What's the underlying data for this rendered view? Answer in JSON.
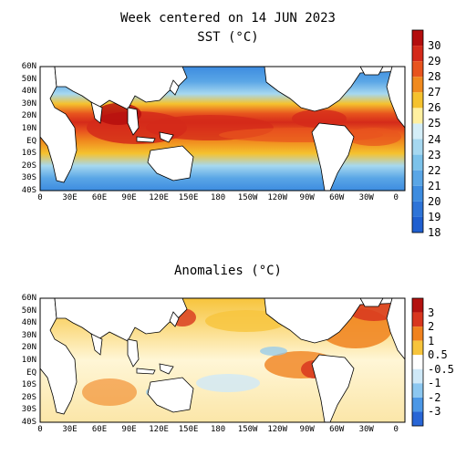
{
  "header": {
    "title": "Week centered on 14 JUN 2023",
    "sst_subtitle": "SST (°C)",
    "anom_subtitle": "Anomalies (°C)"
  },
  "lat_labels": [
    "60N",
    "50N",
    "40N",
    "30N",
    "20N",
    "10N",
    "EQ",
    "10S",
    "20S",
    "30S",
    "40S"
  ],
  "lon_labels": [
    "0",
    "30E",
    "60E",
    "90E",
    "120E",
    "150E",
    "180",
    "150W",
    "120W",
    "90W",
    "60W",
    "30W",
    "0"
  ],
  "sst_colorbar": {
    "labels": [
      "30",
      "29",
      "28",
      "27",
      "26",
      "25",
      "24",
      "23",
      "22",
      "21",
      "20",
      "19",
      "18"
    ],
    "colors": [
      "#b30d0d",
      "#d42a1a",
      "#e8541e",
      "#f08a1e",
      "#f5c22e",
      "#fff0a0",
      "#d4eef8",
      "#a6d8f0",
      "#7cc2ea",
      "#5aa6e6",
      "#3d8ce0",
      "#2e74d8",
      "#1f5fd0"
    ]
  },
  "anom_colorbar": {
    "labels": [
      "3",
      "2",
      "1",
      "0.5",
      "-0.5",
      "-1",
      "-2",
      "-3"
    ],
    "colors": [
      "#b3120f",
      "#d8361e",
      "#f0821e",
      "#f7c43c",
      "#ffffff",
      "#cfe9f8",
      "#8cc7f0",
      "#4b97e6",
      "#2866d6"
    ]
  },
  "maps": {
    "land_color": "#ffffff",
    "coast_color": "#000000"
  }
}
